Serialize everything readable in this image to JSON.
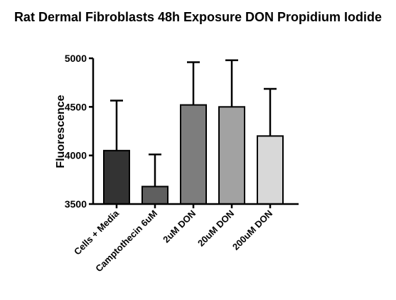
{
  "chart_data": {
    "type": "bar",
    "title": "Rat Dermal Fibroblasts 48h Exposure DON Propidium Iodide",
    "xlabel": "",
    "ylabel": "Fluorescence",
    "ylim": [
      3500,
      5000
    ],
    "yticks": [
      "3500",
      "4000",
      "4500",
      "5000"
    ],
    "ytick_values": [
      3500,
      4000,
      4500,
      5000
    ],
    "categories": [
      "Cells + Media",
      "Camptothecin 6uM",
      "2uM DON",
      "20uM DON",
      "200uM DON"
    ],
    "values": [
      4050,
      3680,
      4520,
      4500,
      4200
    ],
    "error_upper": [
      4565,
      4010,
      4960,
      4980,
      4685
    ],
    "colors": [
      "#333333",
      "#5f5f5f",
      "#7d7d7d",
      "#a2a2a2",
      "#d8d8d8"
    ],
    "grid": false,
    "legend": "none"
  }
}
